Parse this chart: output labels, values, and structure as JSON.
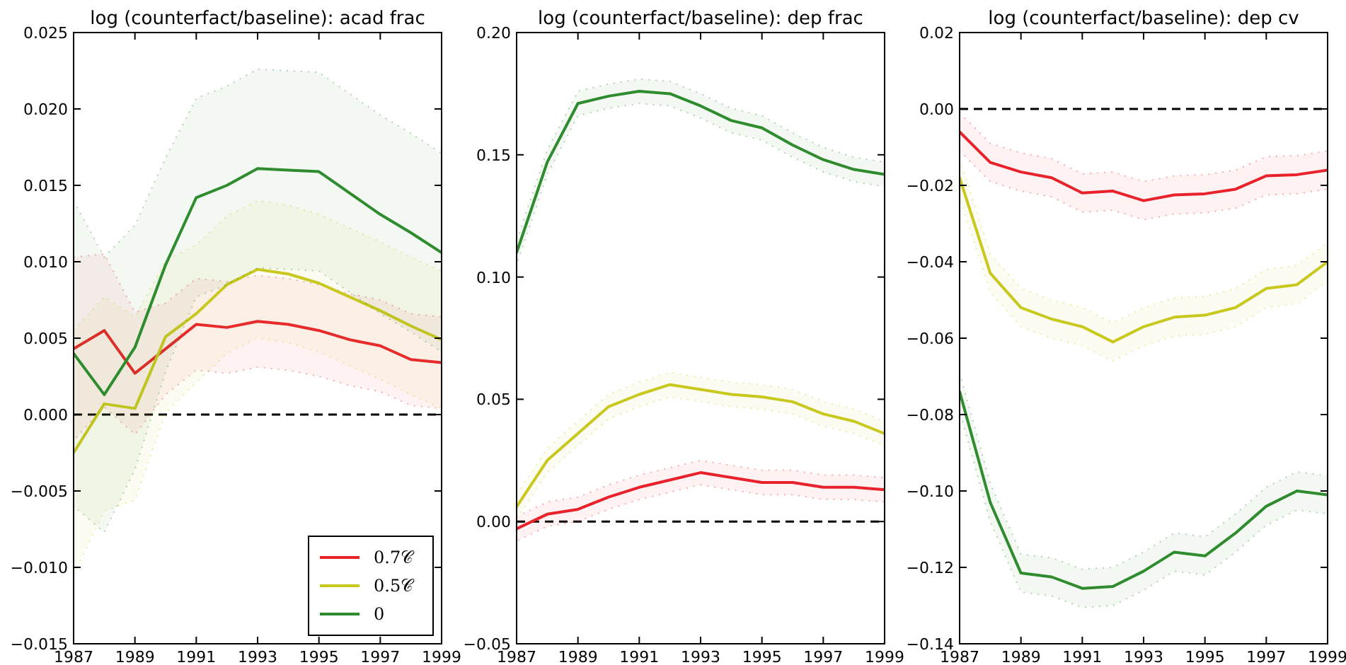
{
  "chart_data": [
    {
      "type": "line",
      "title": "log (counterfact/baseline): acad frac",
      "x": [
        1987,
        1988,
        1989,
        1990,
        1991,
        1992,
        1993,
        1994,
        1995,
        1996,
        1997,
        1998,
        1999
      ],
      "xlim": [
        1987,
        1999
      ],
      "xticks": [
        1987,
        1989,
        1991,
        1993,
        1995,
        1997,
        1999
      ],
      "ylim": [
        -0.015,
        0.025
      ],
      "yticks": [
        {
          "value": -0.015,
          "label": "−0.015"
        },
        {
          "value": -0.01,
          "label": "−0.010"
        },
        {
          "value": -0.005,
          "label": "−0.005"
        },
        {
          "value": 0,
          "label": "0.000"
        },
        {
          "value": 0.005,
          "label": "0.005"
        },
        {
          "value": 0.01,
          "label": "0.010"
        },
        {
          "value": 0.015,
          "label": "0.015"
        },
        {
          "value": 0.02,
          "label": "0.020"
        },
        {
          "value": 0.025,
          "label": "0.025"
        }
      ],
      "grid": false,
      "legend": "bottom right",
      "ref_lines": [
        {
          "axis": "y",
          "value": 0,
          "color": "#000000",
          "line_style": "dashed"
        }
      ],
      "series": [
        {
          "name": "0.7𝒞",
          "color": "#e8212b",
          "values": [
            0.0043,
            0.0055,
            0.0027,
            0.0043,
            0.0059,
            0.0057,
            0.0061,
            0.0059,
            0.0055,
            0.0049,
            0.0045,
            0.0036,
            0.0034
          ],
          "lower": [
            -0.0017,
            0.0005,
            -0.0013,
            0.0013,
            0.0029,
            0.0027,
            0.0031,
            0.0029,
            0.0025,
            0.0019,
            0.0015,
            0.0006,
            0.0004
          ],
          "upper": [
            0.0103,
            0.0105,
            0.0067,
            0.0073,
            0.0089,
            0.0087,
            0.0091,
            0.0089,
            0.0085,
            0.0079,
            0.0075,
            0.0066,
            0.0064
          ]
        },
        {
          "name": "0.5𝒞",
          "color": "#c8c81e",
          "values": [
            -0.0025,
            0.0007,
            0.0004,
            0.0051,
            0.0066,
            0.0085,
            0.0095,
            0.0092,
            0.0086,
            0.0077,
            0.0068,
            0.0058,
            0.0049
          ],
          "lower": [
            -0.0105,
            -0.0063,
            -0.0056,
            0.0001,
            0.0021,
            0.004,
            0.005,
            0.0047,
            0.0041,
            0.0032,
            0.0023,
            0.0013,
            0.0004
          ],
          "upper": [
            0.0055,
            0.0077,
            0.0064,
            0.0101,
            0.0111,
            0.013,
            0.014,
            0.0137,
            0.0131,
            0.0122,
            0.0113,
            0.0103,
            0.0094
          ]
        },
        {
          "name": "0",
          "color": "#2e8b2e",
          "values": [
            0.004,
            0.0013,
            0.0044,
            0.0098,
            0.0142,
            0.015,
            0.0161,
            0.016,
            0.0159,
            0.0145,
            0.0131,
            0.0119,
            0.0106
          ],
          "lower": [
            -0.006,
            -0.0077,
            -0.0036,
            0.0028,
            0.0077,
            0.0085,
            0.0096,
            0.0095,
            0.0094,
            0.008,
            0.0066,
            0.0054,
            0.0041
          ],
          "upper": [
            0.014,
            0.0103,
            0.0124,
            0.0168,
            0.0207,
            0.0215,
            0.0226,
            0.0225,
            0.0224,
            0.021,
            0.0196,
            0.0184,
            0.0171
          ]
        }
      ]
    },
    {
      "type": "line",
      "title": "log (counterfact/baseline): dep frac",
      "x": [
        1987,
        1988,
        1989,
        1990,
        1991,
        1992,
        1993,
        1994,
        1995,
        1996,
        1997,
        1998,
        1999
      ],
      "xlim": [
        1987,
        1999
      ],
      "xticks": [
        1987,
        1989,
        1991,
        1993,
        1995,
        1997,
        1999
      ],
      "ylim": [
        -0.05,
        0.2
      ],
      "yticks": [
        {
          "value": -0.05,
          "label": "−0.05"
        },
        {
          "value": 0,
          "label": "0.00"
        },
        {
          "value": 0.05,
          "label": "0.05"
        },
        {
          "value": 0.1,
          "label": "0.10"
        },
        {
          "value": 0.15,
          "label": "0.15"
        },
        {
          "value": 0.2,
          "label": "0.20"
        }
      ],
      "grid": false,
      "legend": false,
      "ref_lines": [
        {
          "axis": "y",
          "value": 0,
          "color": "#000000",
          "line_style": "dashed"
        }
      ],
      "series": [
        {
          "color": "#e8212b",
          "values": [
            -0.003,
            0.003,
            0.005,
            0.01,
            0.014,
            0.017,
            0.02,
            0.018,
            0.016,
            0.016,
            0.014,
            0.014,
            0.013
          ],
          "lower": [
            -0.008,
            -0.002,
            0.0,
            0.005,
            0.009,
            0.012,
            0.015,
            0.013,
            0.011,
            0.011,
            0.009,
            0.009,
            0.008
          ],
          "upper": [
            0.002,
            0.008,
            0.01,
            0.015,
            0.019,
            0.022,
            0.025,
            0.023,
            0.021,
            0.021,
            0.019,
            0.019,
            0.018
          ]
        },
        {
          "color": "#c8c81e",
          "values": [
            0.006,
            0.025,
            0.036,
            0.047,
            0.052,
            0.056,
            0.054,
            0.052,
            0.051,
            0.049,
            0.044,
            0.041,
            0.036
          ],
          "lower": [
            0.001,
            0.02,
            0.031,
            0.042,
            0.047,
            0.051,
            0.049,
            0.047,
            0.046,
            0.044,
            0.039,
            0.036,
            0.031
          ],
          "upper": [
            0.011,
            0.03,
            0.041,
            0.052,
            0.057,
            0.061,
            0.059,
            0.057,
            0.056,
            0.054,
            0.049,
            0.046,
            0.041
          ]
        },
        {
          "color": "#2e8b2e",
          "values": [
            0.11,
            0.147,
            0.171,
            0.174,
            0.176,
            0.175,
            0.17,
            0.164,
            0.161,
            0.154,
            0.148,
            0.144,
            0.142
          ],
          "lower": [
            0.105,
            0.142,
            0.166,
            0.169,
            0.171,
            0.17,
            0.165,
            0.159,
            0.156,
            0.149,
            0.143,
            0.139,
            0.137
          ],
          "upper": [
            0.115,
            0.152,
            0.176,
            0.179,
            0.181,
            0.18,
            0.175,
            0.169,
            0.166,
            0.159,
            0.153,
            0.149,
            0.147
          ]
        }
      ]
    },
    {
      "type": "line",
      "title": "log (counterfact/baseline): dep cv",
      "x": [
        1987,
        1988,
        1989,
        1990,
        1991,
        1992,
        1993,
        1994,
        1995,
        1996,
        1997,
        1998,
        1999
      ],
      "xlim": [
        1987,
        1999
      ],
      "xticks": [
        1987,
        1989,
        1991,
        1993,
        1995,
        1997,
        1999
      ],
      "ylim": [
        -0.14,
        0.02
      ],
      "yticks": [
        {
          "value": -0.14,
          "label": "−0.14"
        },
        {
          "value": -0.12,
          "label": "−0.12"
        },
        {
          "value": -0.1,
          "label": "−0.10"
        },
        {
          "value": -0.08,
          "label": "−0.08"
        },
        {
          "value": -0.06,
          "label": "−0.06"
        },
        {
          "value": -0.04,
          "label": "−0.04"
        },
        {
          "value": -0.02,
          "label": "−0.02"
        },
        {
          "value": 0,
          "label": "0.00"
        },
        {
          "value": 0.02,
          "label": "0.02"
        }
      ],
      "grid": false,
      "legend": false,
      "ref_lines": [
        {
          "axis": "y",
          "value": 0,
          "color": "#000000",
          "line_style": "dashed"
        }
      ],
      "series": [
        {
          "color": "#e8212b",
          "values": [
            -0.006,
            -0.014,
            -0.0165,
            -0.018,
            -0.022,
            -0.0215,
            -0.024,
            -0.0225,
            -0.0222,
            -0.021,
            -0.0175,
            -0.0172,
            -0.016
          ],
          "lower": [
            -0.011,
            -0.019,
            -0.0215,
            -0.023,
            -0.027,
            -0.0265,
            -0.029,
            -0.0275,
            -0.0272,
            -0.026,
            -0.0225,
            -0.0222,
            -0.021
          ],
          "upper": [
            -0.001,
            -0.009,
            -0.0115,
            -0.013,
            -0.017,
            -0.0165,
            -0.019,
            -0.0175,
            -0.0172,
            -0.016,
            -0.0125,
            -0.0122,
            -0.011
          ]
        },
        {
          "color": "#c8c81e",
          "values": [
            -0.018,
            -0.043,
            -0.052,
            -0.055,
            -0.057,
            -0.061,
            -0.057,
            -0.0545,
            -0.054,
            -0.052,
            -0.047,
            -0.046,
            -0.04
          ],
          "lower": [
            -0.023,
            -0.048,
            -0.057,
            -0.06,
            -0.062,
            -0.066,
            -0.062,
            -0.0595,
            -0.059,
            -0.057,
            -0.052,
            -0.051,
            -0.045
          ],
          "upper": [
            -0.013,
            -0.038,
            -0.047,
            -0.05,
            -0.052,
            -0.056,
            -0.052,
            -0.0495,
            -0.049,
            -0.047,
            -0.042,
            -0.041,
            -0.035
          ]
        },
        {
          "color": "#2e8b2e",
          "values": [
            -0.074,
            -0.103,
            -0.1215,
            -0.1225,
            -0.1255,
            -0.125,
            -0.121,
            -0.116,
            -0.117,
            -0.111,
            -0.104,
            -0.1,
            -0.101
          ],
          "lower": [
            -0.079,
            -0.108,
            -0.1265,
            -0.1275,
            -0.1305,
            -0.13,
            -0.126,
            -0.121,
            -0.122,
            -0.116,
            -0.109,
            -0.105,
            -0.106
          ],
          "upper": [
            -0.069,
            -0.098,
            -0.1165,
            -0.1175,
            -0.1205,
            -0.12,
            -0.116,
            -0.111,
            -0.112,
            -0.106,
            -0.099,
            -0.095,
            -0.096
          ]
        }
      ]
    }
  ]
}
